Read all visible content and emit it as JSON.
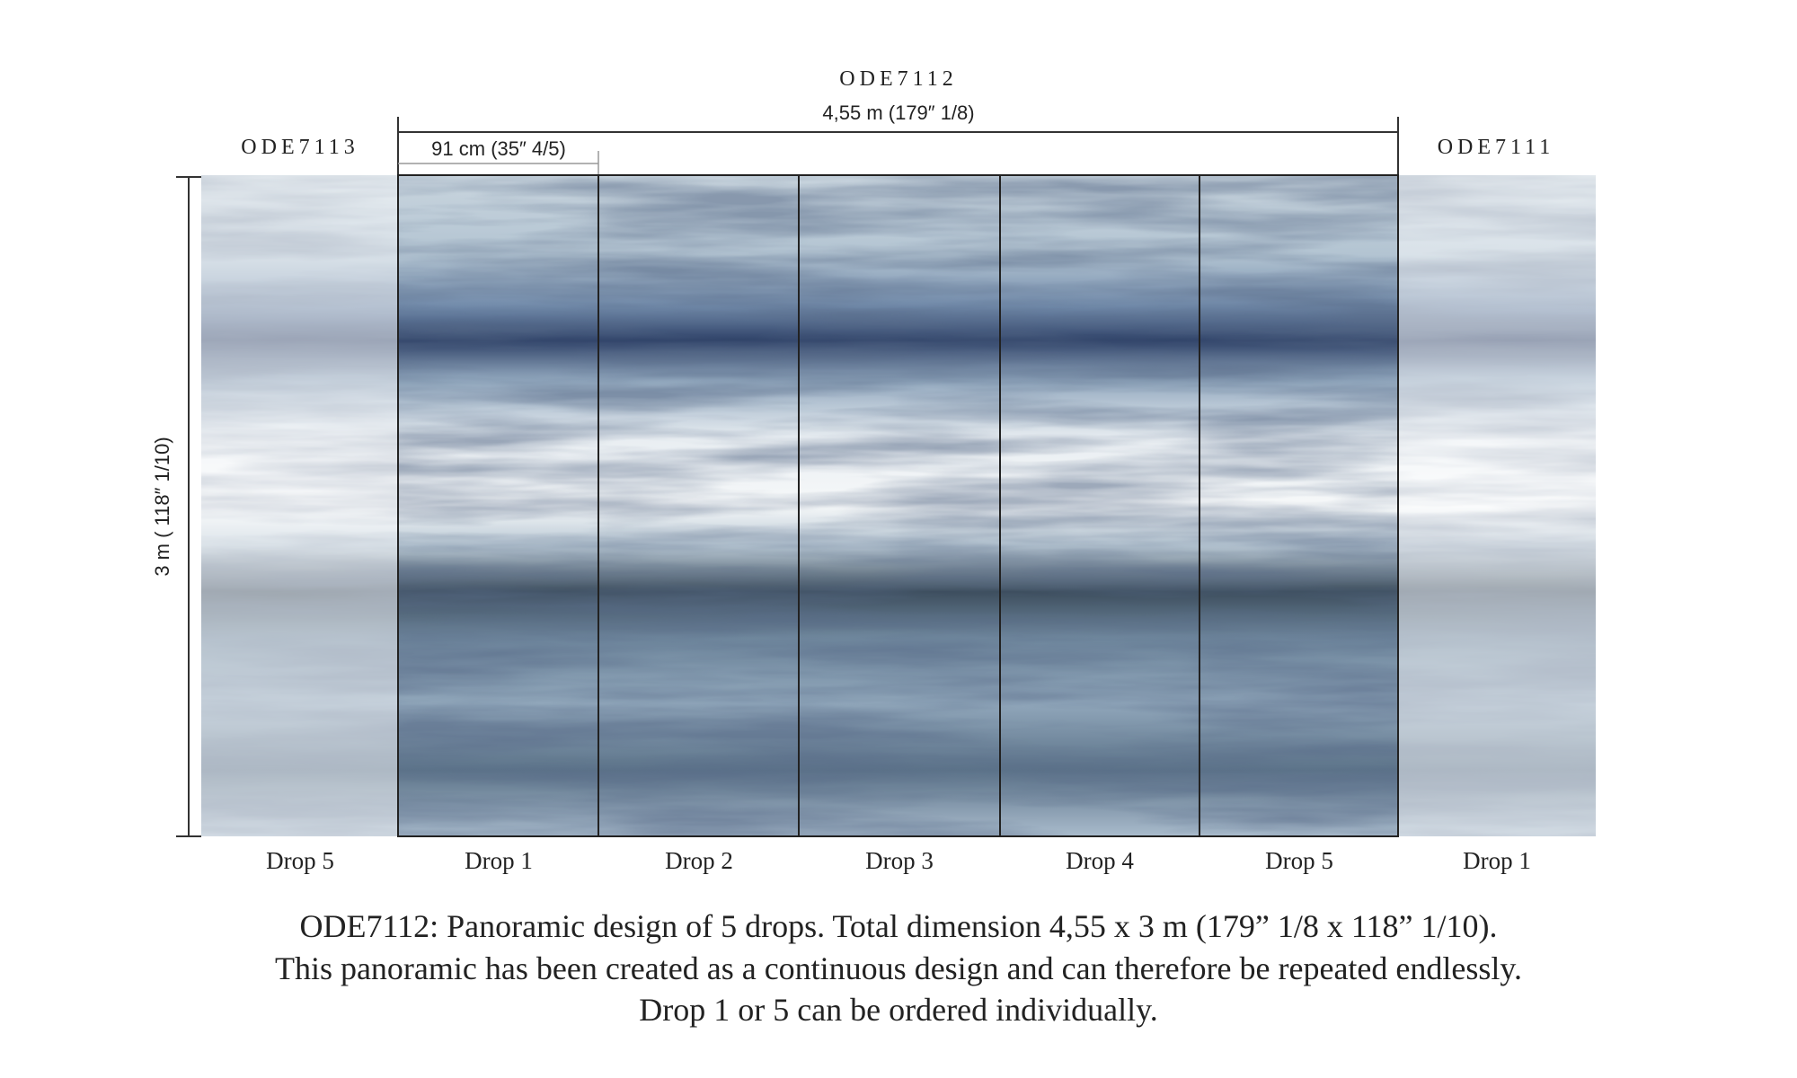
{
  "header": {
    "title": "ODE7112",
    "dimension": "4,55 m (179″ 1/8)"
  },
  "left_label": "ODE7113",
  "right_label": "ODE7111",
  "drop_width": "91 cm (35″ 4/5)",
  "height_label": "3 m ( 118″ 1/10)",
  "drops": [
    "Drop 5",
    "Drop 1",
    "Drop 2",
    "Drop 3",
    "Drop 4",
    "Drop 5",
    "Drop 1"
  ],
  "caption": {
    "lines": [
      "ODE7112: Panoramic design of 5 drops. Total dimension 4,55 x 3 m (179” 1/8  x  118” 1/10).",
      "This panoramic has been created as a continuous design and can therefore be repeated endlessly.",
      "Drop 1 or 5 can be ordered individually."
    ]
  }
}
